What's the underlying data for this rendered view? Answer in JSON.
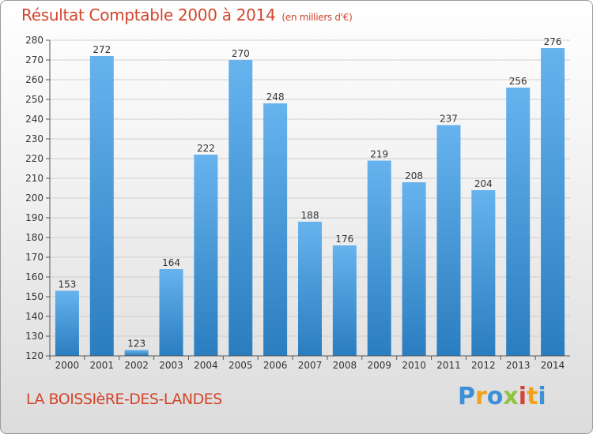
{
  "title": "Résultat Comptable 2000 à 2014",
  "unit": "(en milliers d'€)",
  "commune": "LA BOISSIèRE-DES-LANDES",
  "logo": {
    "letters": [
      "P",
      "r",
      "o",
      "x",
      "i",
      "t",
      "i"
    ],
    "colors": [
      "#3d8fd6",
      "#f0a21e",
      "#3d8fd6",
      "#8bc43f",
      "#d6433a",
      "#f0a21e",
      "#3d8fd6"
    ]
  },
  "colors": {
    "bar_light": "#66b3ee",
    "bar_dark": "#2a7dbf",
    "grid": "#cfcfcf"
  },
  "chart_data": {
    "type": "bar",
    "title": "Résultat Comptable 2000 à 2014",
    "categories": [
      "2000",
      "2001",
      "2002",
      "2003",
      "2004",
      "2005",
      "2006",
      "2007",
      "2008",
      "2009",
      "2010",
      "2011",
      "2012",
      "2013",
      "2014"
    ],
    "values": [
      153,
      272,
      123,
      164,
      222,
      270,
      248,
      188,
      176,
      219,
      208,
      237,
      204,
      256,
      276
    ],
    "ylim": [
      120,
      280
    ],
    "yticks": [
      120,
      130,
      140,
      150,
      160,
      170,
      180,
      190,
      200,
      210,
      220,
      230,
      240,
      250,
      260,
      270,
      280
    ],
    "grid": true,
    "legend": "none"
  }
}
